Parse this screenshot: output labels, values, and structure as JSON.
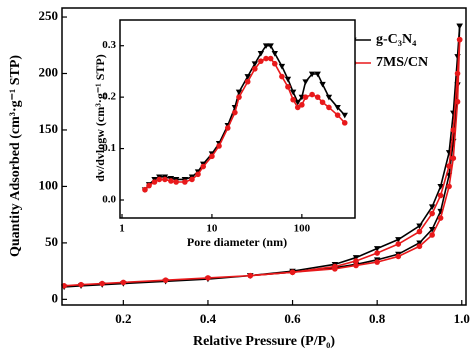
{
  "chart_data": [
    {
      "type": "line",
      "x_label": "Relative Pressure (P/P₀)",
      "y_label": "Quantity Adsorbed (cm³·g⁻¹ STP)",
      "xlim": [
        0.055,
        1.01
      ],
      "ylim": [
        -5,
        258
      ],
      "xticks": [
        0.2,
        0.4,
        0.6,
        0.8,
        {
          "value": 1,
          "label": "1.0"
        }
      ],
      "yticks": [
        0,
        50,
        100,
        150,
        200,
        250
      ],
      "legend": "upper right",
      "series": [
        {
          "name": "g-C₃N₄",
          "color": "#000000",
          "marker": "triangle-down",
          "x": [
            0.06,
            0.1,
            0.15,
            0.2,
            0.3,
            0.4,
            0.5,
            0.6,
            0.7,
            0.75,
            0.8,
            0.85,
            0.9,
            0.93,
            0.95,
            0.97,
            0.98,
            0.99,
            0.995
          ],
          "values": [
            11,
            12,
            13,
            14,
            16,
            18,
            21,
            24,
            28,
            31,
            35,
            40,
            50,
            62,
            78,
            110,
            140,
            190,
            242
          ],
          "desorption_x": [
            0.995,
            0.99,
            0.98,
            0.97,
            0.95,
            0.93,
            0.9,
            0.85,
            0.8,
            0.75,
            0.7,
            0.6,
            0.5
          ],
          "desorption_values": [
            242,
            215,
            165,
            130,
            100,
            82,
            65,
            53,
            45,
            37,
            31,
            25,
            21
          ]
        },
        {
          "name": "7MS/CN",
          "color": "#e8191b",
          "marker": "circle",
          "x": [
            0.06,
            0.1,
            0.15,
            0.2,
            0.3,
            0.4,
            0.5,
            0.6,
            0.7,
            0.75,
            0.8,
            0.85,
            0.9,
            0.93,
            0.95,
            0.97,
            0.98,
            0.99,
            0.995
          ],
          "values": [
            12,
            13,
            14,
            15,
            17,
            19,
            21,
            24,
            27,
            30,
            33,
            38,
            47,
            57,
            72,
            100,
            125,
            175,
            230
          ],
          "desorption_x": [
            0.995,
            0.99,
            0.98,
            0.97,
            0.95,
            0.93,
            0.9,
            0.85,
            0.8,
            0.75,
            0.7,
            0.6,
            0.5
          ],
          "desorption_values": [
            230,
            200,
            150,
            118,
            92,
            76,
            60,
            49,
            41,
            34,
            29,
            24,
            21
          ]
        }
      ]
    },
    {
      "type": "line",
      "x_label": "Pore diameter (nm)",
      "y_label": "dv/dvlogw (cm³·g⁻¹ STP)",
      "xscale": "log",
      "xlim": [
        0.95,
        390
      ],
      "ylim": [
        -0.035,
        0.35
      ],
      "xticks": [
        1,
        10,
        100
      ],
      "yticks": [
        {
          "value": 0,
          "label": "0.0"
        },
        0.1,
        0.2,
        0.3
      ],
      "series": [
        {
          "color": "#000000",
          "marker": "triangle-down",
          "x": [
            1.8,
            2,
            2.3,
            2.6,
            3,
            3.5,
            4,
            5,
            6,
            7,
            8,
            10,
            12,
            15,
            18,
            20,
            25,
            30,
            35,
            40,
            45,
            50,
            60,
            70,
            80,
            90,
            100,
            110,
            130,
            150,
            170,
            200,
            250,
            300
          ],
          "values": [
            0.02,
            0.03,
            0.04,
            0.045,
            0.045,
            0.042,
            0.04,
            0.04,
            0.045,
            0.055,
            0.07,
            0.09,
            0.11,
            0.145,
            0.18,
            0.21,
            0.24,
            0.265,
            0.285,
            0.3,
            0.3,
            0.285,
            0.26,
            0.235,
            0.21,
            0.19,
            0.2,
            0.23,
            0.245,
            0.245,
            0.225,
            0.2,
            0.18,
            0.165
          ]
        },
        {
          "color": "#e8191b",
          "marker": "circle",
          "x": [
            1.8,
            2,
            2.3,
            2.6,
            3,
            3.5,
            4,
            5,
            6,
            7,
            8,
            10,
            12,
            15,
            18,
            20,
            25,
            30,
            35,
            40,
            45,
            50,
            60,
            70,
            80,
            90,
            100,
            110,
            130,
            150,
            170,
            200,
            250,
            300
          ],
          "values": [
            0.02,
            0.028,
            0.035,
            0.04,
            0.04,
            0.037,
            0.035,
            0.035,
            0.04,
            0.05,
            0.065,
            0.085,
            0.105,
            0.14,
            0.17,
            0.2,
            0.23,
            0.255,
            0.27,
            0.275,
            0.275,
            0.265,
            0.24,
            0.22,
            0.195,
            0.18,
            0.185,
            0.2,
            0.205,
            0.2,
            0.19,
            0.18,
            0.165,
            0.15
          ]
        }
      ]
    }
  ]
}
